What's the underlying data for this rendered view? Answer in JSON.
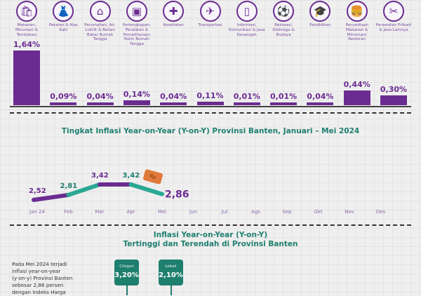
{
  "chart_data": [
    {
      "type": "bar",
      "categories": [
        "Makanan, Minuman & Tembakau",
        "Pakaian & Alas Kaki",
        "Perumahan, Air, Listrik & Bahan Bakar Rumah Tangga",
        "Perlengkapan, Peralatan & Pemeliharaan Rutin Rumah Tangga",
        "Kesehatan",
        "Transportasi",
        "Informasi, Komunikasi & Jasa Keuangan",
        "Rekreasi, Olahraga & Budaya",
        "Pendidikan",
        "Penyediaan Makanan & Minuman/ Restoran",
        "Perawatan Pribadi & Jasa Lainnya"
      ],
      "icons": [
        "grocery-bag-icon",
        "dress-icon",
        "house-icon",
        "appliance-icon",
        "medical-kit-icon",
        "airplane-icon",
        "smartphone-icon",
        "soccer-player-icon",
        "graduation-cap-icon",
        "food-drink-icon",
        "scissors-comb-icon"
      ],
      "values": [
        1.64,
        0.09,
        0.04,
        0.14,
        0.04,
        0.11,
        0.01,
        0.01,
        0.04,
        0.44,
        0.3
      ],
      "labels": [
        "1,64%",
        "0,09%",
        "0,04%",
        "0,14%",
        "0,04%",
        "0,11%",
        "0,01%",
        "0,01%",
        "0,04%",
        "0,44%",
        "0,30%"
      ],
      "color": "#6a2c91"
    },
    {
      "type": "line",
      "title": "Tingkat Inflasi Year-on-Year (Y-on-Y) Provinsi Banten, Januari – Mei  2024",
      "categories": [
        "Jan 24",
        "Feb",
        "Mar",
        "Apr",
        "Mei",
        "Jun",
        "Jul",
        "Ags",
        "Sep",
        "Okt",
        "Nov",
        "Des"
      ],
      "values": [
        2.52,
        2.81,
        3.42,
        3.42,
        2.86
      ],
      "labels": [
        "2,52",
        "2,81",
        "3,42",
        "3,42",
        "2,86"
      ],
      "colors": {
        "purple": "#6a2c91",
        "teal": "#2aa894"
      }
    }
  ],
  "section2": {
    "title_1": "Inflasi Year-on-Year (Y-on-Y)",
    "title_2": "Tertinggi dan Terendah di Provinsi Banten",
    "paragraph": [
      "Pada Mei 2024 terjadi",
      "inflasi year-on-year",
      "(y-on-y) Provinsi Banten",
      "sebesar 2,86 persen",
      "dengan Indeks Harga"
    ],
    "regions": [
      {
        "name": "Cilegon",
        "value": "3,20%"
      },
      {
        "name": "Lebak",
        "value": "2,10%"
      }
    ]
  }
}
